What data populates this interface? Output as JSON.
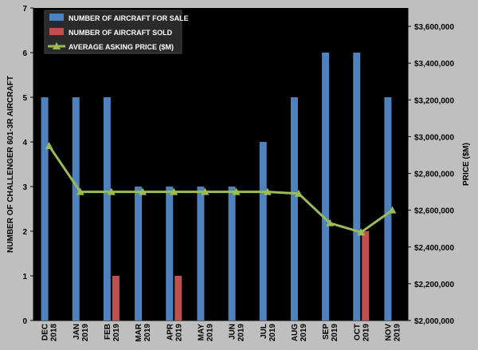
{
  "chart_data": {
    "type": "bar",
    "categories": [
      [
        "DEC",
        "2018"
      ],
      [
        "JAN",
        "2019"
      ],
      [
        "FEB",
        "2019"
      ],
      [
        "MAR",
        "2019"
      ],
      [
        "APR",
        "2019"
      ],
      [
        "MAY",
        "2019"
      ],
      [
        "JUN",
        "2019"
      ],
      [
        "JUL",
        "2019"
      ],
      [
        "AUG",
        "2019"
      ],
      [
        "SEP",
        "2019"
      ],
      [
        "OCT",
        "2019"
      ],
      [
        "NOV",
        "2019"
      ]
    ],
    "series": [
      {
        "name": "NUMBER OF AIRCRAFT FOR SALE",
        "kind": "bar",
        "axis": "left",
        "color": "#4f81bd",
        "values": [
          5,
          5,
          5,
          3,
          3,
          3,
          3,
          4,
          5,
          6,
          6,
          5
        ]
      },
      {
        "name": "NUMBER OF AIRCRAFT SOLD",
        "kind": "bar",
        "axis": "left",
        "color": "#c0504d",
        "values": [
          0,
          0,
          1,
          0,
          1,
          0,
          0,
          0,
          0,
          0,
          2,
          0
        ]
      },
      {
        "name": "AVERAGE ASKING PRICE ($M)",
        "kind": "line",
        "axis": "right",
        "color": "#9bbb59",
        "values": [
          2950000,
          2700000,
          2700000,
          2700000,
          2700000,
          2700000,
          2700000,
          2700000,
          2690000,
          2530000,
          2480000,
          2600000
        ]
      }
    ],
    "ylabel": "NUMBER OF CHALLENGER 601-3R  AIRCRAFT",
    "y2label": "PRICE ($M)",
    "ylim": [
      0,
      7
    ],
    "y_ticks": [
      "0",
      "1",
      "2",
      "3",
      "4",
      "5",
      "6",
      "7"
    ],
    "y2lim": [
      2000000,
      3700000
    ],
    "y2_ticks": [
      "$2,000,000",
      "$2,200,000",
      "$2,400,000",
      "$2,600,000",
      "$2,800,000",
      "$3,000,000",
      "$3,200,000",
      "$3,400,000",
      "$3,600,000"
    ],
    "legend_position": "top-left",
    "grid": false,
    "plot_background": "#000000",
    "page_background": "#bfbfbf"
  }
}
